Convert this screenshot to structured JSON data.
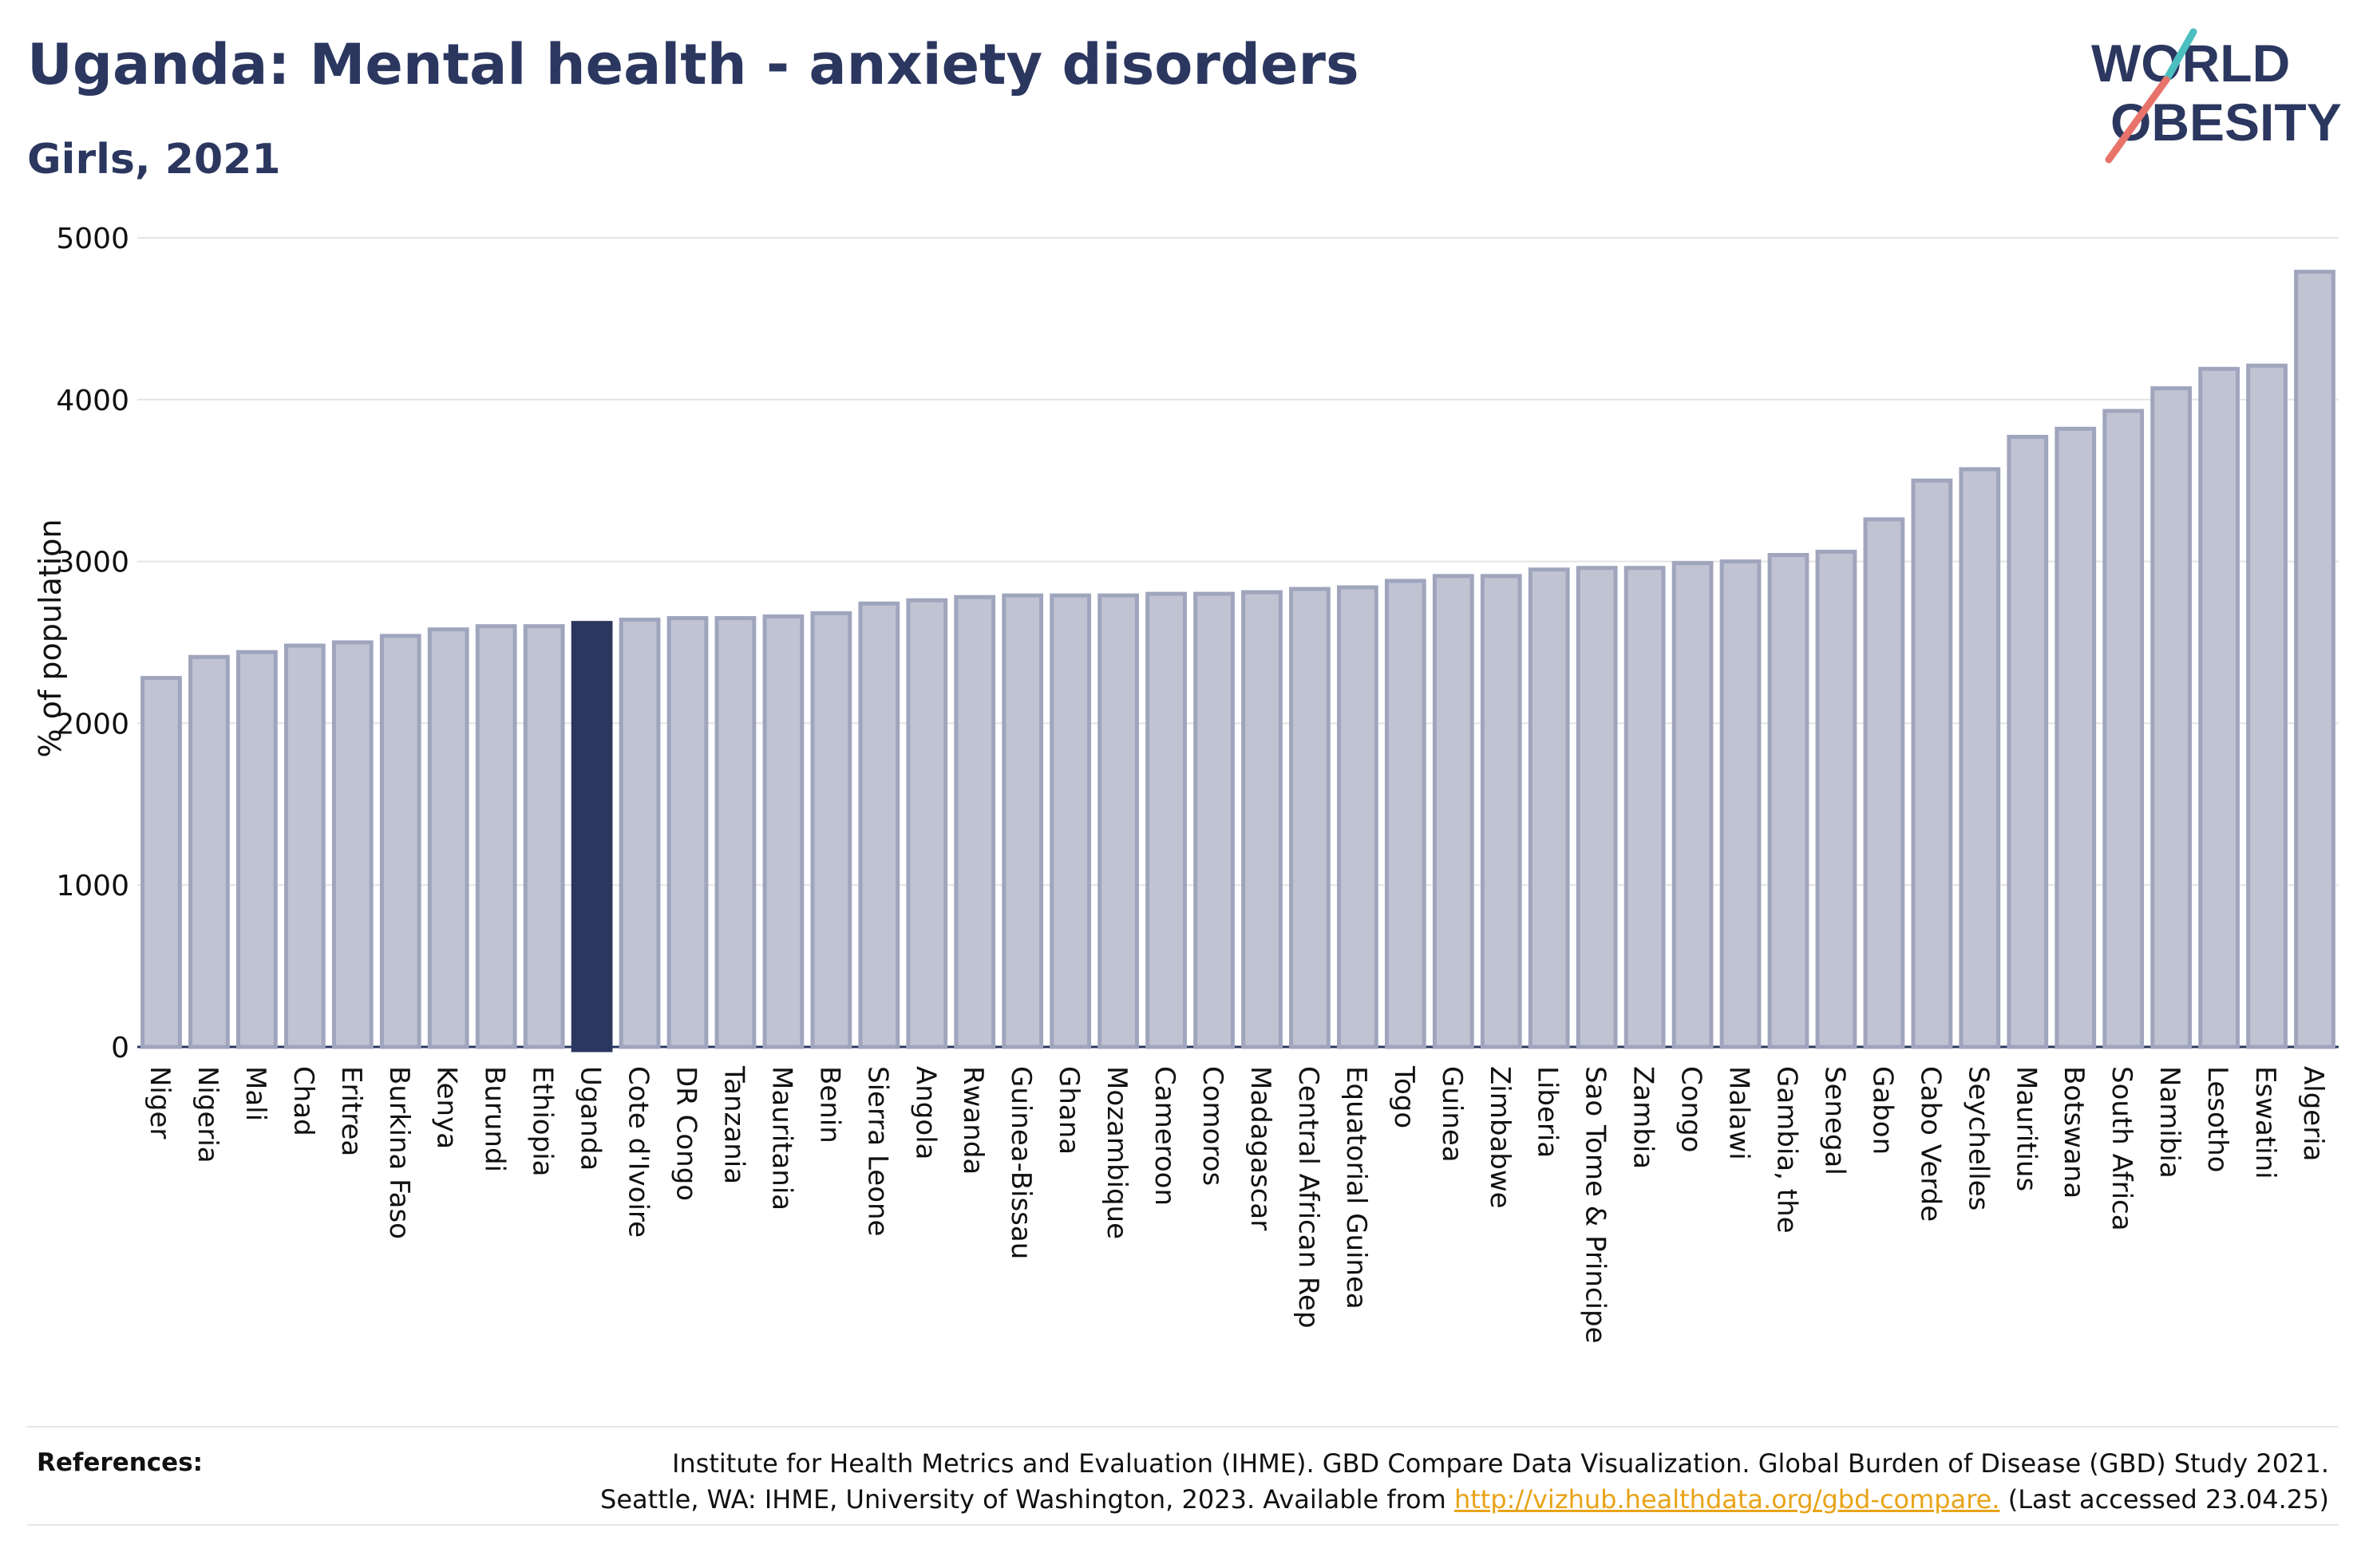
{
  "header": {
    "title": "Uganda: Mental health - anxiety disorders",
    "subtitle": "Girls, 2021"
  },
  "logo": {
    "line1": "WORLD",
    "line2": "OBESITY",
    "colors": {
      "text": "#2b375f",
      "slash_teal": "#4bbfbf",
      "slash_coral": "#e8736a"
    }
  },
  "chart_data": {
    "type": "bar",
    "title": "Uganda: Mental health - anxiety disorders",
    "subtitle": "Girls, 2021",
    "xlabel": "",
    "ylabel": "% of population",
    "ylim": [
      0,
      5000
    ],
    "yticks": [
      0,
      1000,
      2000,
      3000,
      4000,
      5000
    ],
    "grid": true,
    "highlight": "Uganda",
    "colors": {
      "bar": "#bfc3d2",
      "bar_border": "#9fa5bd",
      "highlight": "#2b375f"
    },
    "categories": [
      "Niger",
      "Nigeria",
      "Mali",
      "Chad",
      "Eritrea",
      "Burkina Faso",
      "Kenya",
      "Burundi",
      "Ethiopia",
      "Uganda",
      "Cote d'Ivoire",
      "DR Congo",
      "Tanzania",
      "Mauritania",
      "Benin",
      "Sierra Leone",
      "Angola",
      "Rwanda",
      "Guinea-Bissau",
      "Ghana",
      "Mozambique",
      "Cameroon",
      "Comoros",
      "Madagascar",
      "Central African Rep",
      "Equatorial Guinea",
      "Togo",
      "Guinea",
      "Zimbabwe",
      "Liberia",
      "Sao Tome & Principe",
      "Zambia",
      "Congo",
      "Malawi",
      "Gambia, the",
      "Senegal",
      "Gabon",
      "Cabo Verde",
      "Seychelles",
      "Mauritius",
      "Botswana",
      "South Africa",
      "Namibia",
      "Lesotho",
      "Eswatini",
      "Algeria"
    ],
    "values": [
      2280,
      2410,
      2440,
      2480,
      2500,
      2540,
      2580,
      2600,
      2600,
      2620,
      2640,
      2650,
      2650,
      2660,
      2680,
      2740,
      2760,
      2780,
      2790,
      2790,
      2790,
      2800,
      2800,
      2810,
      2830,
      2840,
      2880,
      2910,
      2910,
      2950,
      2960,
      2960,
      2990,
      3000,
      3040,
      3060,
      3260,
      3500,
      3570,
      3770,
      3820,
      3930,
      4070,
      4190,
      4210,
      4790
    ]
  },
  "references": {
    "label": "References:",
    "line1": "Institute for Health Metrics and Evaluation (IHME). GBD Compare Data Visualization. Global Burden of Disease (GBD) Study 2021.",
    "line2_prefix": "Seattle, WA: IHME, University of Washington, 2023. Available from ",
    "link": "http://vizhub.healthdata.org/gbd-compare.",
    "line2_suffix": " (Last accessed 23.04.25)"
  }
}
